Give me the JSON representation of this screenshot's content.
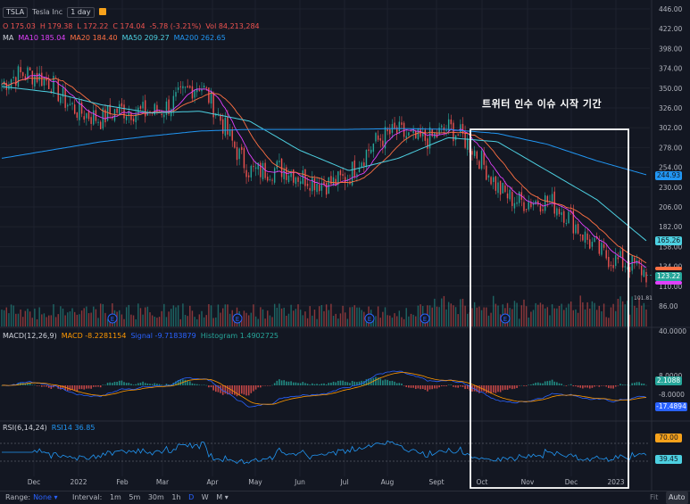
{
  "header": {
    "symbol": "TSLA",
    "name": "Tesla Inc",
    "interval": "1 day",
    "ohlc": {
      "o": "O  175.03",
      "h": "H  179.38",
      "l": "L  172.22",
      "c": "C  174.04",
      "chg": "-5.78 (-3.21%)",
      "vol": "Vol  84,213,284"
    },
    "ma_label": "MA",
    "ma10": "MA10  185.04",
    "ma20": "MA20  184.40",
    "ma50": "MA50  209.27",
    "ma200": "MA200  262.65"
  },
  "annotation": "트위터 인수 이슈 시작 기간",
  "price_axis": [
    "446.00",
    "422.00",
    "398.00",
    "374.00",
    "350.00",
    "326.00",
    "302.00",
    "278.00",
    "254.00",
    "230.00",
    "206.00",
    "182.00",
    "158.00",
    "134.00",
    "110.00",
    "86.00"
  ],
  "price_tags": {
    "ma200": "244.93",
    "ma50": "165.26",
    "close": "123.22",
    "low_mark": "101.81"
  },
  "macd_legend": {
    "name": "MACD(12,26,9)",
    "macd": "MACD -8.2281154",
    "signal": "Signal -9.7183879",
    "hist": "Histogram 1.4902725"
  },
  "macd_axis": [
    "40.0000",
    "8.0000",
    "-8.0000"
  ],
  "macd_tags": {
    "hist": "2.1088",
    "signal": "-17.4894"
  },
  "rsi_legend": {
    "name": "RSI(6,14,24)",
    "rsi": "RSI14 36.85"
  },
  "rsi_tags": {
    "upper": "70.00",
    "value": "39.45"
  },
  "time_axis": [
    "Dec",
    "2022",
    "Feb",
    "Mar",
    "Apr",
    "May",
    "Jun",
    "Jul",
    "Aug",
    "Sept",
    "Oct",
    "Nov",
    "Dec",
    "2023"
  ],
  "toolbar": {
    "range_label": "Range:",
    "range_value": "None ▾",
    "interval_label": "Interval:",
    "intervals": [
      "1m",
      "5m",
      "30m",
      "1h",
      "D",
      "W",
      "M ▾"
    ],
    "active": "D",
    "right": [
      "Fit",
      "Auto"
    ]
  },
  "colors": {
    "up": "#26a69a",
    "down": "#ef5350",
    "ma10": "#e040fb",
    "ma20": "#ff7043",
    "ma50": "#4dd0e1",
    "ma200": "#2196f3",
    "macd": "#2962ff",
    "signal": "#ff9800",
    "rsi": "#2196f3"
  },
  "chart_data": {
    "type": "candlestick",
    "title": "TSLA · Tesla Inc · 1 day",
    "ylim": [
      86,
      446
    ],
    "x": [
      "2021-12",
      "2022-01",
      "2022-02",
      "2022-03",
      "2022-04",
      "2022-05",
      "2022-06",
      "2022-07",
      "2022-08",
      "2022-09",
      "2022-10",
      "2022-11",
      "2022-12",
      "2023-01"
    ],
    "close": [
      355,
      360,
      305,
      330,
      345,
      260,
      235,
      250,
      295,
      300,
      235,
      205,
      165,
      115
    ],
    "ma200": [
      265,
      275,
      285,
      292,
      298,
      300,
      300,
      300,
      301,
      300,
      295,
      282,
      262,
      245
    ],
    "ma50": [
      352,
      345,
      330,
      320,
      322,
      310,
      275,
      250,
      265,
      290,
      285,
      250,
      215,
      165
    ],
    "last": {
      "open": 175.03,
      "high": 179.38,
      "low": 172.22,
      "close": 174.04,
      "change": -5.78,
      "change_pct": -3.21,
      "volume": 84213284
    },
    "highlight_period": "트위터 인수 이슈 시작 기간"
  }
}
